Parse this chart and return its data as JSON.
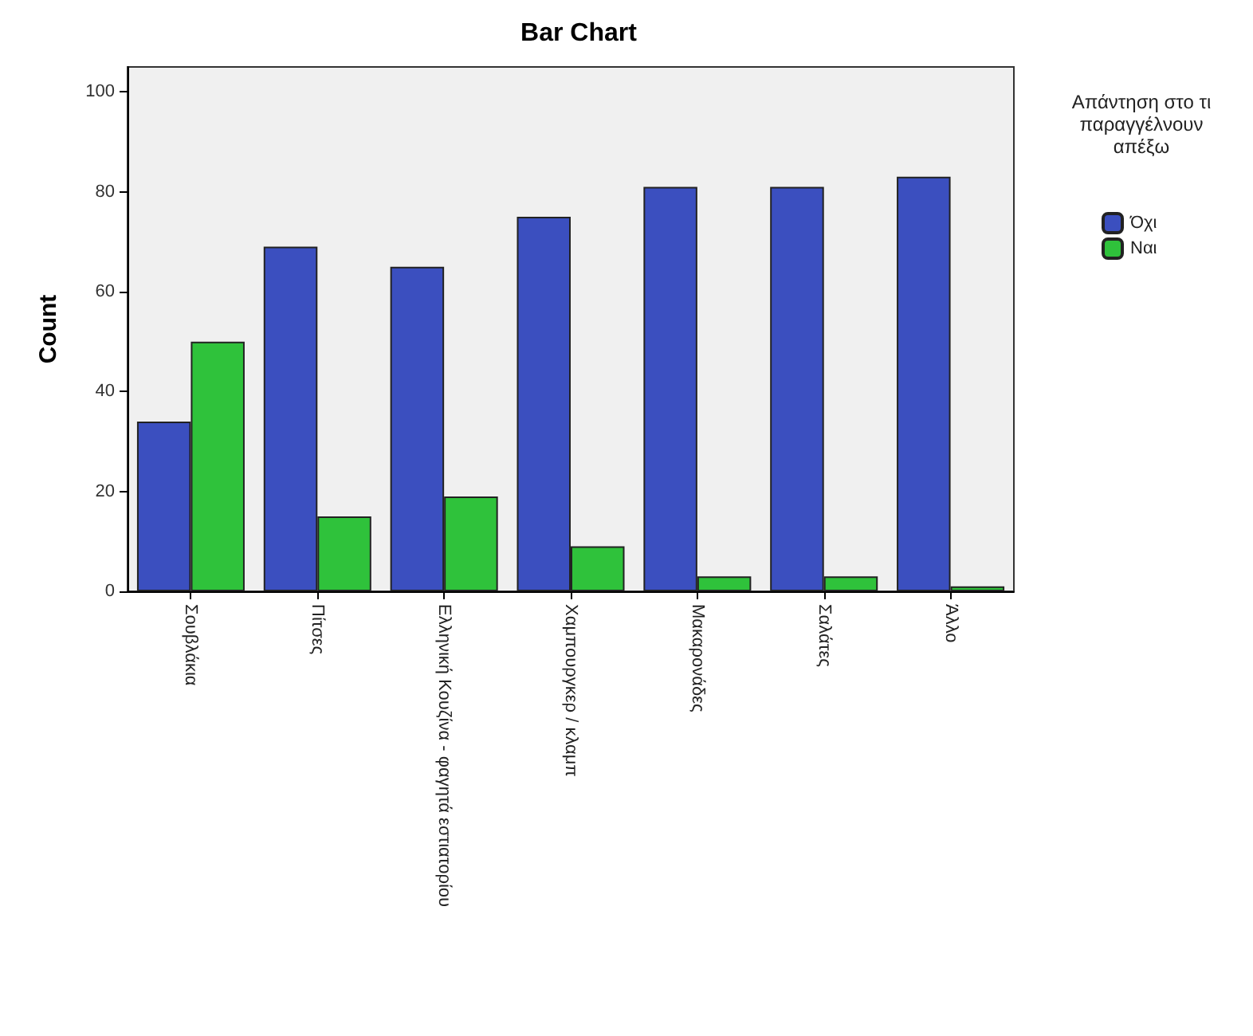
{
  "chart_data": {
    "type": "bar",
    "title": "Bar Chart",
    "ylabel": "Count",
    "legend_title": "Απάντηση στο τι παραγγέλνουν απέξω",
    "categories": [
      "Σουβλάκια",
      "Πίτσες",
      "Ελληνική Κουζίνα - φαγητά εστιατορίου",
      "Χαμπουργκερ / κλαμπ",
      "Μακαρονάδες",
      "Σαλάτες",
      "Άλλο"
    ],
    "series": [
      {
        "name": "Όχι",
        "color": "#3b4fbf",
        "values": [
          34,
          69,
          65,
          75,
          81,
          81,
          83
        ]
      },
      {
        "name": "Ναι",
        "color": "#2fc23b",
        "values": [
          50,
          15,
          19,
          9,
          3,
          3,
          1
        ]
      }
    ],
    "ylim": [
      0,
      105
    ],
    "yticks": [
      0,
      20,
      40,
      60,
      80,
      100
    ],
    "grid": false,
    "legend": "right"
  }
}
